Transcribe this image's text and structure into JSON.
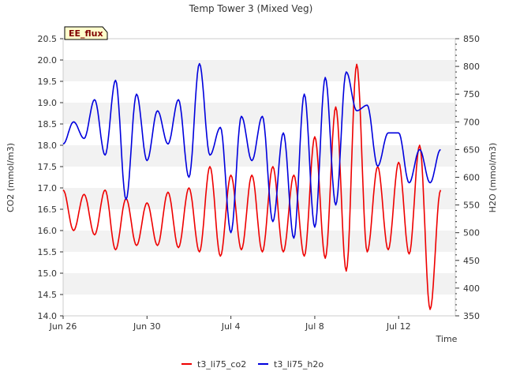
{
  "chart_data": {
    "type": "line",
    "title": "Temp Tower 3 (Mixed Veg)",
    "badge": "EE_flux",
    "xlabel": "Time",
    "ylabel_left": "CO2 (mmol/m3)",
    "ylabel_right": "H2O (mmol/m3)",
    "x_range": [
      "Jun 26",
      "Jul 14"
    ],
    "x_ticks": [
      "Jun 26",
      "Jun 30",
      "Jul 4",
      "Jul 8",
      "Jul 12"
    ],
    "x_tick_days": [
      0,
      4,
      8,
      12,
      16
    ],
    "ylim_left": [
      14.0,
      20.5
    ],
    "ylim_right": [
      350,
      850
    ],
    "y_ticks_left": [
      "14.0",
      "14.5",
      "15.0",
      "15.5",
      "16.0",
      "16.5",
      "17.0",
      "17.5",
      "18.0",
      "18.5",
      "19.0",
      "19.5",
      "20.0",
      "20.5"
    ],
    "y_ticks_right": [
      "350",
      "400",
      "450",
      "500",
      "550",
      "600",
      "650",
      "700",
      "750",
      "800",
      "850"
    ],
    "grid": "horizontal-bands",
    "legend_position": "bottom-center",
    "series": [
      {
        "name": "t3_li75_co2",
        "axis": "left",
        "color": "#ee0000",
        "x": [
          "Jun 26",
          "Jun 26 12:00",
          "Jun 27",
          "Jun 27 12:00",
          "Jun 28",
          "Jun 28 12:00",
          "Jun 29",
          "Jun 29 12:00",
          "Jun 30",
          "Jun 30 12:00",
          "Jul 1",
          "Jul 1 12:00",
          "Jul 2",
          "Jul 2 12:00",
          "Jul 3",
          "Jul 3 12:00",
          "Jul 4",
          "Jul 4 12:00",
          "Jul 5",
          "Jul 5 12:00",
          "Jul 6",
          "Jul 6 12:00",
          "Jul 7",
          "Jul 7 12:00",
          "Jul 8",
          "Jul 8 12:00",
          "Jul 9",
          "Jul 9 12:00",
          "Jul 10",
          "Jul 10 12:00",
          "Jul 11",
          "Jul 11 12:00",
          "Jul 12",
          "Jul 12 12:00",
          "Jul 13",
          "Jul 13 12:00",
          "Jul 14"
        ],
        "values": [
          16.95,
          16.0,
          16.85,
          15.9,
          16.95,
          15.55,
          16.75,
          15.65,
          16.65,
          15.65,
          16.9,
          15.6,
          17.0,
          15.5,
          17.5,
          15.4,
          17.3,
          15.55,
          17.3,
          15.5,
          17.5,
          15.5,
          17.3,
          15.4,
          18.2,
          15.35,
          18.9,
          15.05,
          19.9,
          15.5,
          17.5,
          15.55,
          17.6,
          15.45,
          18.0,
          14.15,
          16.95
        ]
      },
      {
        "name": "t3_li75_h2o",
        "axis": "right",
        "color": "#0000dd",
        "x": [
          "Jun 26",
          "Jun 26 12:00",
          "Jun 27",
          "Jun 27 12:00",
          "Jun 28",
          "Jun 28 12:00",
          "Jun 29",
          "Jun 29 12:00",
          "Jun 30",
          "Jun 30 12:00",
          "Jul 1",
          "Jul 1 12:00",
          "Jul 2",
          "Jul 2 12:00",
          "Jul 3",
          "Jul 3 12:00",
          "Jul 4",
          "Jul 4 12:00",
          "Jul 5",
          "Jul 5 12:00",
          "Jul 6",
          "Jul 6 12:00",
          "Jul 7",
          "Jul 7 12:00",
          "Jul 8",
          "Jul 8 12:00",
          "Jul 9",
          "Jul 9 12:00",
          "Jul 10",
          "Jul 10 12:00",
          "Jul 11",
          "Jul 11 12:00",
          "Jul 12",
          "Jul 12 12:00",
          "Jul 13",
          "Jul 13 12:00",
          "Jul 14"
        ],
        "values": [
          660,
          700,
          670,
          740,
          640,
          775,
          560,
          750,
          630,
          720,
          660,
          740,
          600,
          805,
          640,
          690,
          500,
          710,
          630,
          710,
          520,
          680,
          490,
          750,
          510,
          780,
          550,
          790,
          720,
          730,
          620,
          680,
          680,
          590,
          650,
          590,
          650
        ]
      }
    ]
  }
}
